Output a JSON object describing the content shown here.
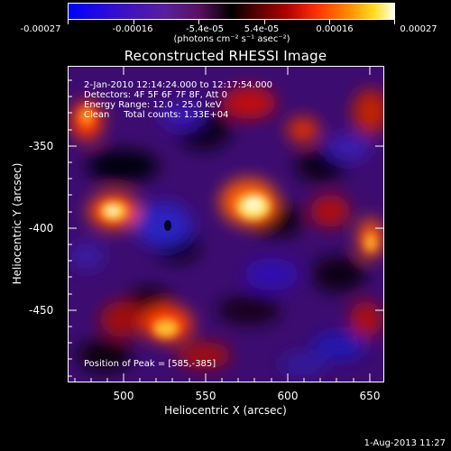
{
  "colorbar": {
    "ticks": [
      "-0.00027",
      "-0.00016",
      "-5.4e-05",
      "5.4e-05",
      "0.00016",
      "0.00027"
    ],
    "units": "(photons cm⁻² s⁻¹ asec⁻²)"
  },
  "title": "Reconstructed RHESSI Image",
  "info": {
    "time": "2-Jan-2010 12:14:24.000 to 12:17:54.000",
    "detectors": "Detectors: 4F 5F 6F 7F 8F, Att 0",
    "energy": "Energy Range: 12.0 - 25.0 keV",
    "clean": "Clean     Total counts: 1.33E+04",
    "peak": "Position of Peak = [585,-385]"
  },
  "axes": {
    "xlabel": "Heliocentric X (arcsec)",
    "ylabel": "Heliocentric Y (arcsec)",
    "xticks": [
      "500",
      "550",
      "600",
      "650"
    ],
    "yticks": [
      "-350",
      "-400",
      "-450"
    ]
  },
  "footer": {
    "date": "1-Aug-2013 11:27"
  }
}
